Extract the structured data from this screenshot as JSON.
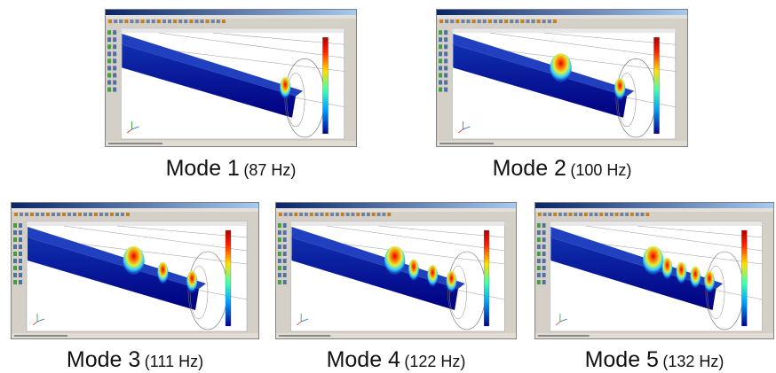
{
  "panels": [
    {
      "mode": "Mode 1",
      "frequency": "(87 Hz)"
    },
    {
      "mode": "Mode 2",
      "frequency": "(100 Hz)"
    },
    {
      "mode": "Mode 3",
      "frequency": "(111 Hz)"
    },
    {
      "mode": "Mode 4",
      "frequency": "(122 Hz)"
    },
    {
      "mode": "Mode 5",
      "frequency": "(132 Hz)"
    }
  ]
}
